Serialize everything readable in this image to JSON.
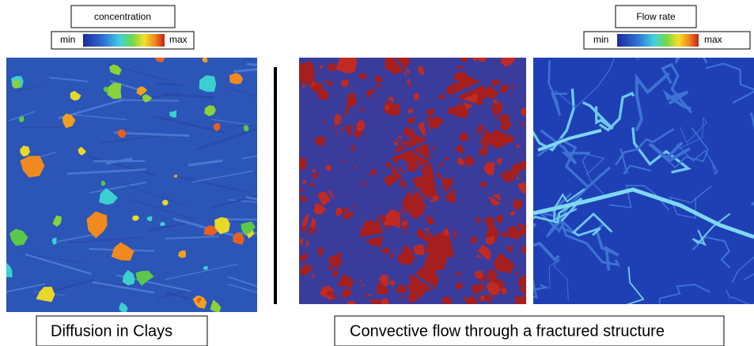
{
  "legend_left": {
    "title": "concentration",
    "min": "min",
    "max": "max"
  },
  "legend_right": {
    "title": "Flow rate",
    "min": "min",
    "max": "max"
  },
  "captions": {
    "left": "Diffusion in Clays",
    "right": "Convective flow through a fractured structure"
  }
}
